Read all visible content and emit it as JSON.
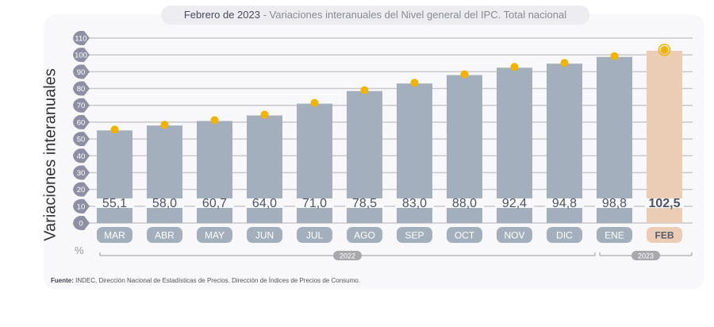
{
  "chart_data": {
    "type": "bar",
    "title_date": "Febrero de 2023",
    "title": "- Variaciones interanuales del Nivel general del IPC. Total nacional",
    "ylabel": "Variaciones interanuales",
    "unit": "%",
    "ylim": [
      0,
      110
    ],
    "yticks": [
      0,
      10,
      20,
      30,
      40,
      50,
      60,
      70,
      80,
      90,
      100,
      110
    ],
    "categories": [
      "MAR",
      "ABR",
      "MAY",
      "JUN",
      "JUL",
      "AGO",
      "SEP",
      "OCT",
      "NOV",
      "DIC",
      "ENE",
      "FEB"
    ],
    "values": [
      55.1,
      58.0,
      60.7,
      64.0,
      71.0,
      78.5,
      83.0,
      88.0,
      92.4,
      94.8,
      98.8,
      102.5
    ],
    "value_labels": [
      "55,1",
      "58,0",
      "60,7",
      "64,0",
      "71,0",
      "78,5",
      "83,0",
      "88,0",
      "92,4",
      "94,8",
      "98,8",
      "102,5"
    ],
    "years": [
      {
        "label": "2022",
        "from": 0,
        "to": 9
      },
      {
        "label": "2023",
        "from": 10,
        "to": 11
      }
    ],
    "colors": {
      "bar": "#a4afbd",
      "highlight": "#ebcdb6",
      "marker": "#f0b400",
      "tick": "#8e8fa5",
      "grid": "#c8c8cc"
    }
  },
  "source": {
    "label": "Fuente:",
    "text": " INDEC, Dirección Nacional de Estadísticas de Precios. Dirección de Índices de Precios de Consumo."
  }
}
